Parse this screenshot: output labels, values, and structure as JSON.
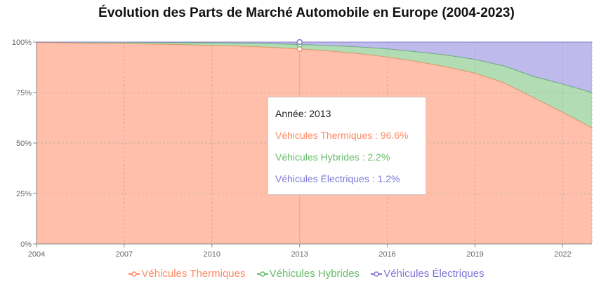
{
  "chart_data": {
    "type": "area",
    "stacked": true,
    "title": "Évolution des Parts de Marché Automobile en Europe (2004-2023)",
    "xlabel": "",
    "ylabel": "",
    "x": [
      2004,
      2005,
      2006,
      2007,
      2008,
      2009,
      2010,
      2011,
      2012,
      2013,
      2014,
      2015,
      2016,
      2017,
      2018,
      2019,
      2020,
      2021,
      2022,
      2023
    ],
    "x_ticks": [
      "2004",
      "2007",
      "2010",
      "2013",
      "2016",
      "2019",
      "2022"
    ],
    "y_ticks": [
      "0%",
      "25%",
      "50%",
      "75%",
      "100%"
    ],
    "ylim": [
      0,
      100
    ],
    "grid": true,
    "legend_position": "bottom",
    "series": [
      {
        "name": "Véhicules Thermiques",
        "color": "#ff8a65",
        "values": [
          99.8,
          99.6,
          99.4,
          99.2,
          99.0,
          98.7,
          98.4,
          98.0,
          97.4,
          96.6,
          95.6,
          94.3,
          92.6,
          90.4,
          87.8,
          84.6,
          79.8,
          72.5,
          65.2,
          57.5
        ]
      },
      {
        "name": "Véhicules Hybrides",
        "color": "#66bb6a",
        "values": [
          0.2,
          0.4,
          0.5,
          0.7,
          0.8,
          1.0,
          1.2,
          1.5,
          1.8,
          2.2,
          2.7,
          3.3,
          4.0,
          4.8,
          5.8,
          6.8,
          8.3,
          10.5,
          14.0,
          17.5
        ]
      },
      {
        "name": "Véhicules Électriques",
        "color": "#7e76d8",
        "values": [
          0.0,
          0.0,
          0.1,
          0.1,
          0.2,
          0.3,
          0.4,
          0.5,
          0.8,
          1.2,
          1.7,
          2.4,
          3.4,
          4.8,
          6.4,
          8.6,
          11.9,
          17.0,
          20.8,
          25.0
        ]
      }
    ],
    "tooltip": {
      "year_label": "Année: 2013",
      "lines": [
        "Véhicules Thermiques : 96.6%",
        "Véhicules Hybrides : 2.2%",
        "Véhicules Électriques : 1.2%"
      ],
      "active_x": 2013
    }
  }
}
